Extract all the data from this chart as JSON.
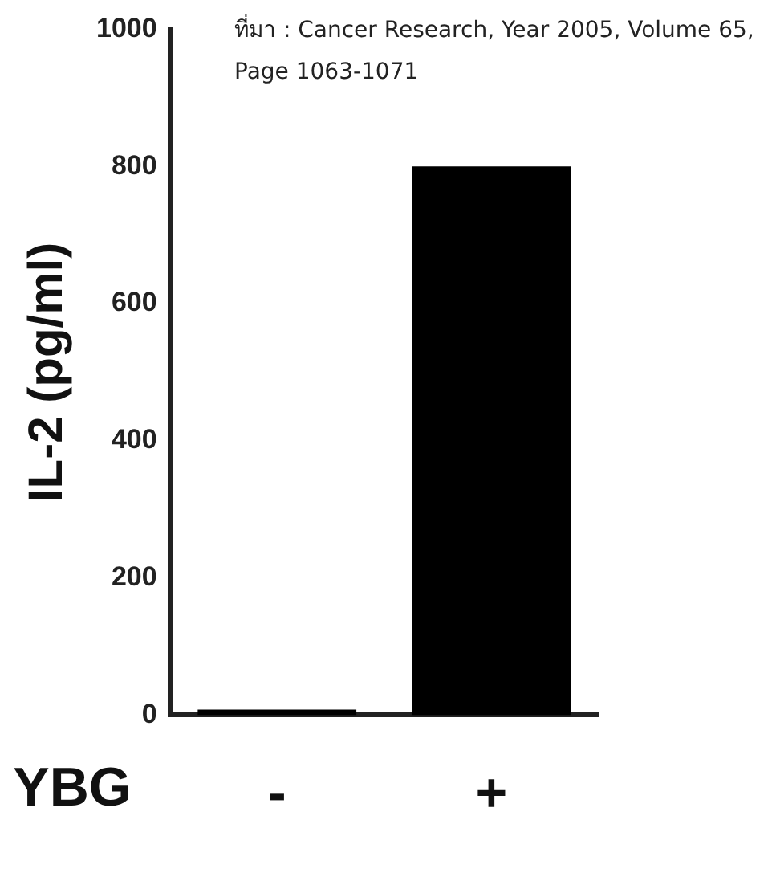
{
  "chart_data": {
    "type": "bar",
    "xlabel": "YBG",
    "ylabel": "IL-2 (pg/ml)",
    "annotations": [
      "ที่มา : Cancer Research, Year 2005, Volume 65, Page 1063-1071"
    ],
    "categories": [
      "-",
      "+"
    ],
    "values": [
      8,
      800
    ],
    "color": "#000000",
    "ylim": [
      0,
      1000
    ],
    "yticks": [
      0,
      200,
      400,
      600,
      800,
      1000
    ],
    "grid": false,
    "legend": false
  }
}
